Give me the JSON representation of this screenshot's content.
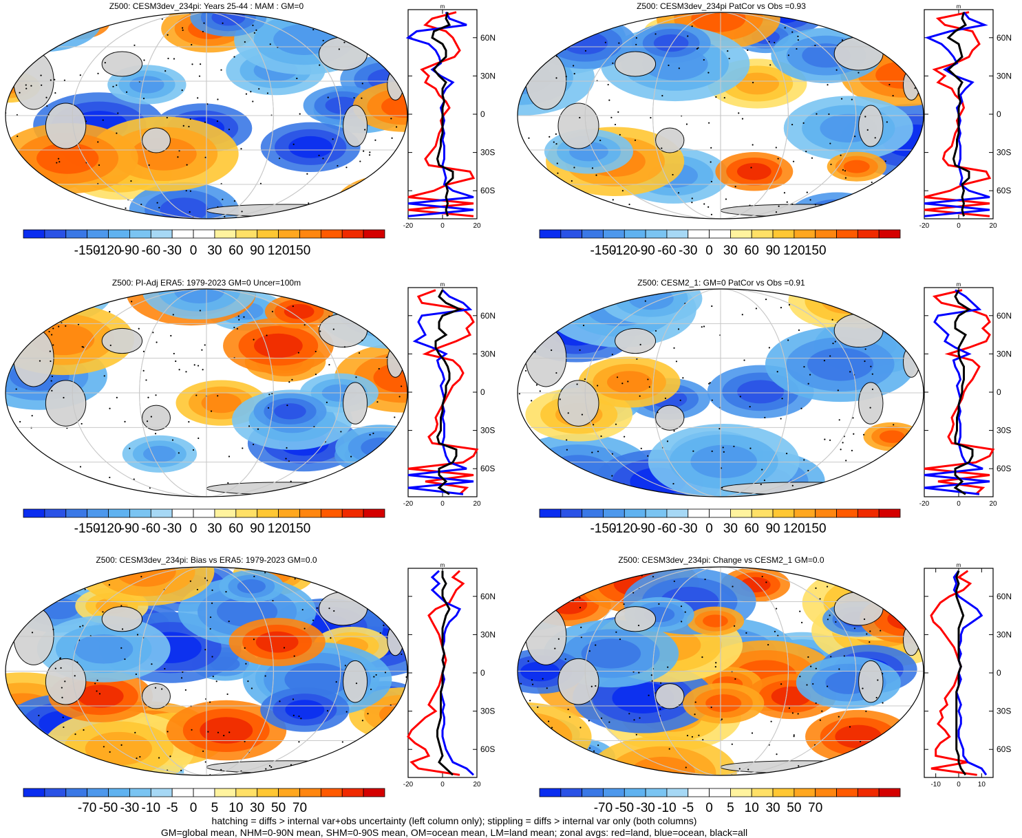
{
  "footer": {
    "line1": "hatching = diffs > internal var+obs uncertainty (left column only); stippling = diffs > internal var only (both columns)",
    "line2": "GM=global mean, NHM=0-90N mean, SHM=0-90S mean, OM=ocean mean, LM=land mean; zonal avgs: red=land, blue=ocean, black=all"
  },
  "colors": {
    "land": "#d3d3d3",
    "red_line": "#ff0000",
    "blue_line": "#0000ff",
    "black_line": "#000000",
    "palette": [
      "#0a2df0",
      "#2a52e6",
      "#3a78e6",
      "#4d98ec",
      "#5fb2f0",
      "#7ac4f2",
      "#a6d8f5",
      "#ffffff",
      "#ffffff",
      "#fff39e",
      "#ffe066",
      "#ffc733",
      "#ffa71f",
      "#ff8610",
      "#ff5a00",
      "#f02a00",
      "#d40000"
    ]
  },
  "chart_data": [
    {
      "type": "heatmap",
      "title": "Z500: CESM3dev_234pi: Years 25-44 : MAM : GM=0",
      "colorbar_ticks": [
        "-150",
        "-120",
        "-90",
        "-60",
        "-30",
        "0",
        "30",
        "60",
        "90",
        "120",
        "150"
      ],
      "zonal_profile": {
        "x_unit": "m",
        "xlim": [
          -20,
          20
        ],
        "x_ticks": [
          "-20",
          "0",
          "20"
        ],
        "y_ticks": [
          "60N",
          "30N",
          "0",
          "30S",
          "60S"
        ],
        "lat": [
          80,
          75,
          70,
          65,
          60,
          55,
          50,
          45,
          40,
          35,
          30,
          25,
          20,
          15,
          10,
          5,
          0,
          -5,
          -10,
          -15,
          -20,
          -25,
          -30,
          -35,
          -40,
          -45,
          -50,
          -55,
          -60,
          -65,
          -70,
          -75,
          -80
        ],
        "land": [
          8,
          -6,
          -10,
          2,
          6,
          8,
          10,
          7,
          -3,
          -12,
          -8,
          -10,
          -4,
          -2,
          2,
          4,
          1,
          -1,
          0,
          -2,
          -3,
          -4,
          -7,
          -10,
          -8,
          16,
          18,
          3,
          -5,
          -20,
          18,
          -20,
          18
        ],
        "ocean": [
          2,
          4,
          14,
          -15,
          -20,
          -8,
          -4,
          -2,
          -1,
          -6,
          -1,
          6,
          2,
          0,
          1,
          -1,
          0,
          1,
          0,
          1,
          0,
          1,
          1,
          1,
          0,
          1,
          2,
          1,
          6,
          18,
          -20,
          18,
          -20
        ],
        "all": [
          3,
          2,
          4,
          -5,
          -6,
          0,
          2,
          2,
          -2,
          -5,
          -2,
          2,
          0,
          0,
          1,
          0,
          0,
          0,
          0,
          0,
          -1,
          -1,
          -2,
          -3,
          -2,
          6,
          6,
          2,
          3,
          2,
          3,
          2,
          3
        ]
      }
    },
    {
      "type": "heatmap",
      "title": "Z500: CESM3dev_234pi PatCor vs Obs =0.93",
      "colorbar_ticks": [
        "-150",
        "-120",
        "-90",
        "-60",
        "-30",
        "0",
        "30",
        "60",
        "90",
        "120",
        "150"
      ],
      "zonal_profile": {
        "x_unit": "m",
        "xlim": [
          -20,
          20
        ],
        "x_ticks": [
          "-20",
          "0",
          "20"
        ],
        "y_ticks": [
          "60N",
          "30N",
          "0",
          "30S",
          "60S"
        ],
        "lat": [
          80,
          75,
          70,
          65,
          60,
          55,
          50,
          45,
          40,
          35,
          30,
          25,
          20,
          15,
          10,
          5,
          0,
          -5,
          -10,
          -15,
          -20,
          -25,
          -30,
          -35,
          -40,
          -45,
          -50,
          -55,
          -60,
          -65,
          -70,
          -75,
          -80
        ],
        "land": [
          6,
          -12,
          -8,
          8,
          10,
          12,
          8,
          6,
          -2,
          -14,
          -8,
          -12,
          -4,
          -2,
          2,
          3,
          1,
          -1,
          0,
          -2,
          -3,
          -4,
          -8,
          -9,
          -6,
          16,
          18,
          3,
          -5,
          -20,
          18,
          -20,
          18
        ],
        "ocean": [
          3,
          6,
          15,
          -5,
          -18,
          -10,
          -6,
          -3,
          -1,
          -8,
          -2,
          8,
          4,
          1,
          2,
          -1,
          0,
          1,
          0,
          1,
          0,
          1,
          1,
          1,
          0,
          1,
          2,
          1,
          6,
          18,
          -20,
          18,
          -20
        ],
        "all": [
          3,
          2,
          4,
          -2,
          -6,
          0,
          1,
          2,
          -2,
          -6,
          -2,
          2,
          0,
          0,
          1,
          0,
          0,
          0,
          0,
          0,
          -1,
          -1,
          -2,
          -3,
          -2,
          6,
          6,
          2,
          3,
          2,
          3,
          2,
          3
        ]
      }
    },
    {
      "type": "heatmap",
      "title": "Z500: PI-Adj ERA5: 1979-2023 GM=0 Uncer=100m",
      "colorbar_ticks": [
        "-150",
        "-120",
        "-90",
        "-60",
        "-30",
        "0",
        "30",
        "60",
        "90",
        "120",
        "150"
      ],
      "zonal_profile": {
        "x_unit": "m",
        "xlim": [
          -20,
          20
        ],
        "x_ticks": [
          "-20",
          "0",
          "20"
        ],
        "y_ticks": [
          "60N",
          "30N",
          "0",
          "30S",
          "60S"
        ],
        "lat": [
          80,
          75,
          70,
          65,
          60,
          55,
          50,
          45,
          40,
          35,
          30,
          25,
          20,
          15,
          10,
          5,
          0,
          -5,
          -10,
          -15,
          -20,
          -25,
          -30,
          -35,
          -40,
          -45,
          -50,
          -55,
          -60,
          -65,
          -70,
          -75,
          -80
        ],
        "land": [
          -4,
          -14,
          -12,
          12,
          16,
          18,
          14,
          16,
          8,
          -2,
          -10,
          6,
          10,
          12,
          10,
          6,
          4,
          2,
          0,
          -2,
          -4,
          -3,
          -4,
          -8,
          -6,
          20,
          18,
          12,
          -20,
          18,
          -10,
          14,
          10
        ],
        "ocean": [
          0,
          4,
          12,
          16,
          -12,
          -14,
          -12,
          -10,
          -16,
          -6,
          2,
          -3,
          -2,
          0,
          1,
          -1,
          0,
          1,
          0,
          1,
          0,
          1,
          1,
          1,
          0,
          1,
          2,
          4,
          14,
          -20,
          18,
          -20,
          12
        ],
        "all": [
          0,
          -2,
          2,
          10,
          0,
          -2,
          -2,
          2,
          -4,
          -4,
          -2,
          1,
          3,
          4,
          4,
          2,
          2,
          1,
          0,
          0,
          -1,
          -1,
          -1,
          -3,
          -2,
          8,
          8,
          6,
          -2,
          -2,
          2,
          -2,
          4
        ]
      }
    },
    {
      "type": "heatmap",
      "title": "Z500: CESM2_1: GM=0 PatCor vs Obs =0.91",
      "colorbar_ticks": [
        "-150",
        "-120",
        "-90",
        "-60",
        "-30",
        "0",
        "30",
        "60",
        "90",
        "120",
        "150"
      ],
      "zonal_profile": {
        "x_unit": "m",
        "xlim": [
          -20,
          20
        ],
        "x_ticks": [
          "-20",
          "0",
          "20"
        ],
        "y_ticks": [
          "60N",
          "30N",
          "0",
          "30S",
          "60S"
        ],
        "lat": [
          80,
          75,
          70,
          65,
          60,
          55,
          50,
          45,
          40,
          35,
          30,
          25,
          20,
          15,
          10,
          5,
          0,
          -5,
          -10,
          -15,
          -20,
          -25,
          -30,
          -35,
          -40,
          -45,
          -50,
          -55,
          -60,
          -65,
          -70,
          -75,
          -80
        ],
        "land": [
          2,
          -14,
          -10,
          6,
          16,
          18,
          14,
          18,
          16,
          6,
          -6,
          8,
          12,
          10,
          8,
          5,
          3,
          2,
          0,
          -2,
          -4,
          -3,
          -4,
          -6,
          -4,
          20,
          18,
          10,
          -20,
          18,
          -12,
          14,
          10
        ],
        "ocean": [
          -2,
          4,
          8,
          12,
          -12,
          -14,
          -10,
          -6,
          -8,
          -2,
          6,
          -3,
          -2,
          0,
          1,
          -1,
          0,
          1,
          0,
          1,
          0,
          1,
          1,
          1,
          0,
          1,
          2,
          4,
          14,
          -20,
          18,
          -20,
          12
        ],
        "all": [
          0,
          -2,
          0,
          6,
          0,
          -2,
          -2,
          4,
          2,
          0,
          0,
          1,
          3,
          3,
          3,
          2,
          2,
          1,
          0,
          0,
          -1,
          -1,
          -1,
          -2,
          -2,
          8,
          8,
          6,
          -2,
          -2,
          2,
          -2,
          4
        ]
      }
    },
    {
      "type": "heatmap",
      "title": "Z500: CESM3dev_234pi: Bias vs ERA5: 1979-2023 GM=0.0",
      "colorbar_ticks": [
        "-70",
        "-50",
        "-30",
        "-10",
        "-5",
        "0",
        "5",
        "10",
        "30",
        "50",
        "70"
      ],
      "zonal_profile": {
        "x_unit": "m",
        "xlim": [
          -20,
          20
        ],
        "x_ticks": [
          "-20",
          "0",
          "20"
        ],
        "y_ticks": [
          "60N",
          "30N",
          "0",
          "30S",
          "60S"
        ],
        "lat": [
          80,
          75,
          70,
          65,
          60,
          55,
          50,
          45,
          40,
          35,
          30,
          25,
          20,
          15,
          10,
          5,
          0,
          -5,
          -10,
          -15,
          -20,
          -25,
          -30,
          -35,
          -40,
          -45,
          -50,
          -55,
          -60,
          -65,
          -70,
          -75,
          -80
        ],
        "land": [
          10,
          6,
          12,
          8,
          6,
          4,
          -4,
          -8,
          -6,
          -4,
          -2,
          -1,
          0,
          1,
          2,
          1,
          0,
          -1,
          -2,
          -4,
          -6,
          -8,
          -4,
          -10,
          -14,
          -18,
          -20,
          -16,
          -10,
          -8,
          -18,
          -14,
          10
        ],
        "ocean": [
          -2,
          -6,
          -2,
          -6,
          -2,
          2,
          10,
          8,
          4,
          2,
          1,
          1,
          0,
          1,
          0,
          1,
          0,
          1,
          0,
          -1,
          0,
          1,
          0,
          1,
          1,
          0,
          0,
          1,
          2,
          4,
          6,
          14,
          18
        ],
        "all": [
          0,
          0,
          2,
          0,
          0,
          2,
          4,
          2,
          1,
          0,
          0,
          0,
          0,
          1,
          0,
          1,
          0,
          0,
          0,
          -1,
          -1,
          -1,
          -1,
          -1,
          -2,
          -3,
          -3,
          -2,
          -1,
          0,
          -2,
          2,
          6
        ]
      }
    },
    {
      "type": "heatmap",
      "title": "Z500: CESM3dev_234pi: Change vs CESM2_1 GM=0.0",
      "colorbar_ticks": [
        "-70",
        "-50",
        "-30",
        "-10",
        "-5",
        "0",
        "5",
        "10",
        "30",
        "50",
        "70"
      ],
      "zonal_profile": {
        "x_unit": "m",
        "xlim": [
          -15,
          15
        ],
        "x_ticks": [
          "-10",
          "0",
          "10"
        ],
        "y_ticks": [
          "60N",
          "30N",
          "0",
          "30S",
          "60S"
        ],
        "lat": [
          80,
          75,
          70,
          65,
          60,
          55,
          50,
          45,
          40,
          35,
          30,
          25,
          20,
          15,
          10,
          5,
          0,
          -5,
          -10,
          -15,
          -20,
          -25,
          -30,
          -35,
          -40,
          -45,
          -50,
          -55,
          -60,
          -65,
          -70,
          -75,
          -80
        ],
        "land": [
          4,
          0,
          5,
          2,
          -4,
          -8,
          -10,
          -12,
          -11,
          -8,
          -6,
          -4,
          -2,
          -1,
          0,
          1,
          0,
          -1,
          -2,
          -4,
          -6,
          -5,
          -8,
          -7,
          -9,
          -6,
          -4,
          -8,
          -10,
          -10,
          4,
          -12,
          8
        ],
        "ocean": [
          0,
          -2,
          -1,
          -2,
          0,
          4,
          8,
          10,
          6,
          2,
          1,
          1,
          0,
          1,
          0,
          1,
          0,
          1,
          0,
          -1,
          0,
          1,
          0,
          1,
          1,
          0,
          0,
          1,
          2,
          2,
          4,
          10,
          12
        ],
        "all": [
          0,
          -1,
          0,
          -1,
          -1,
          0,
          1,
          2,
          1,
          0,
          0,
          0,
          0,
          0,
          0,
          1,
          0,
          0,
          0,
          -1,
          -1,
          -1,
          -1,
          -1,
          -1,
          -1,
          -1,
          -1,
          -1,
          0,
          0,
          1,
          3
        ]
      }
    }
  ]
}
